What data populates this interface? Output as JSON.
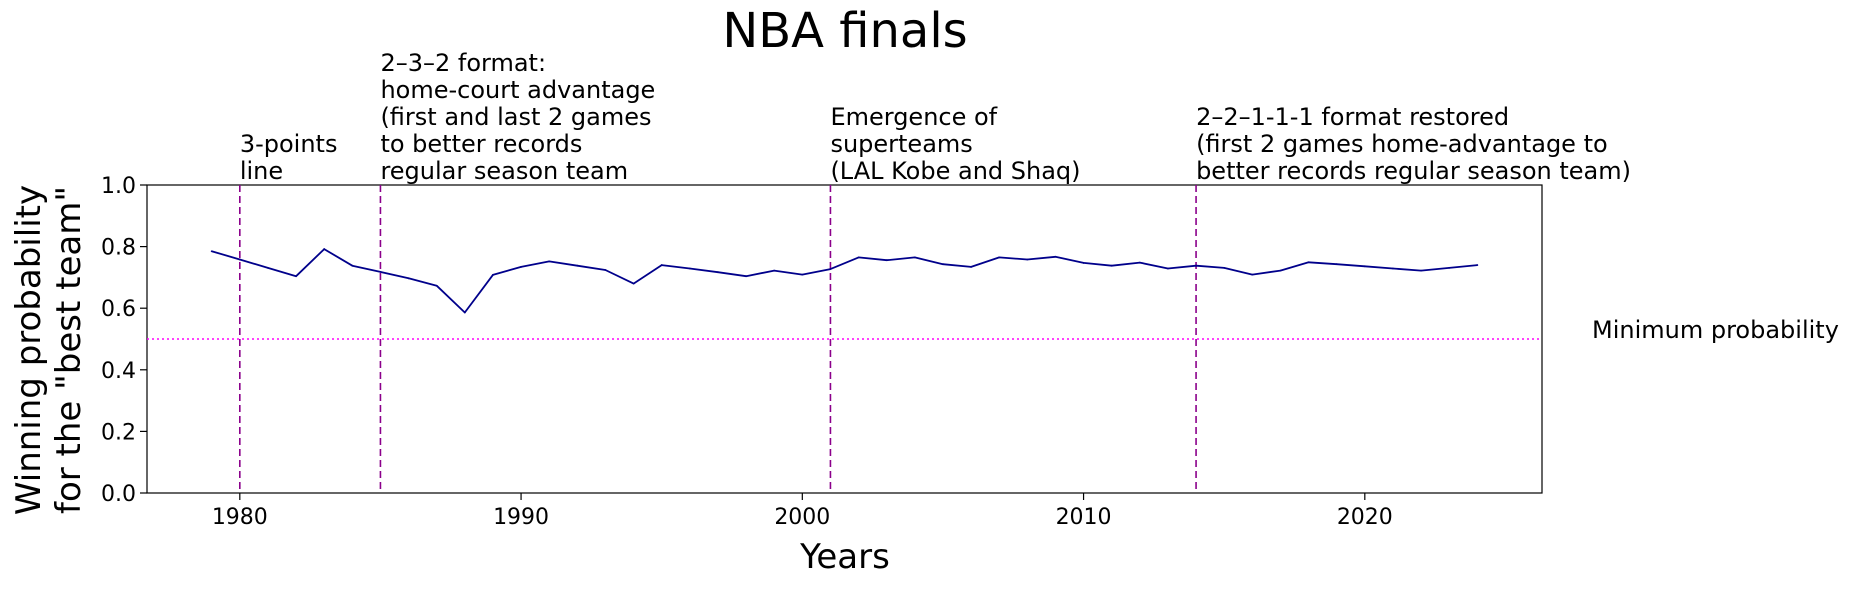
{
  "chart_data": {
    "type": "line",
    "title": "NBA finals",
    "xlabel": "Years",
    "ylabel": [
      "Winning probability",
      "for the \"best team\""
    ],
    "xlim": [
      1976.7,
      2026.3
    ],
    "ylim": [
      0.0,
      1.0
    ],
    "x_ticks": [
      1980,
      1990,
      2000,
      2010,
      2020
    ],
    "y_ticks": [
      0.0,
      0.2,
      0.4,
      0.6,
      0.8,
      1.0
    ],
    "grid": false,
    "series": [
      {
        "color": "#00008b",
        "x": [
          1979,
          1980,
          1981,
          1982,
          1983,
          1984,
          1985,
          1986,
          1987,
          1988,
          1989,
          1990,
          1991,
          1992,
          1993,
          1994,
          1995,
          1996,
          1997,
          1998,
          1999,
          2000,
          2001,
          2002,
          2003,
          2004,
          2005,
          2006,
          2007,
          2008,
          2009,
          2010,
          2011,
          2012,
          2013,
          2014,
          2015,
          2016,
          2017,
          2018,
          2019,
          2020,
          2021,
          2022,
          2023,
          2024
        ],
        "values": [
          0.785,
          0.758,
          0.731,
          0.704,
          0.792,
          0.738,
          0.718,
          0.697,
          0.673,
          0.586,
          0.708,
          0.734,
          0.752,
          0.738,
          0.724,
          0.68,
          0.74,
          0.729,
          0.717,
          0.704,
          0.722,
          0.709,
          0.727,
          0.765,
          0.756,
          0.765,
          0.743,
          0.734,
          0.765,
          0.758,
          0.767,
          0.747,
          0.738,
          0.748,
          0.729,
          0.738,
          0.731,
          0.709,
          0.722,
          0.749,
          0.743,
          0.736,
          0.729,
          0.722,
          0.731,
          0.74
        ]
      }
    ],
    "reference_lines": [
      {
        "orientation": "horizontal",
        "value": 0.5,
        "style": "dotted",
        "color": "#ff00ff",
        "label": "Minimum probability"
      }
    ],
    "events": [
      {
        "year": 1980,
        "label": [
          "3-points",
          "line"
        ]
      },
      {
        "year": 1985,
        "label": [
          "2–3–2 format:",
          "home-court advantage",
          "(first and last 2 games",
          "to better records",
          "regular season team"
        ]
      },
      {
        "year": 2001,
        "label": [
          "Emergence of",
          "superteams",
          "(LAL Kobe and Shaq)"
        ]
      },
      {
        "year": 2014,
        "label": [
          "2–2–1-1-1 format restored",
          "(first 2 games home-advantage to",
          "better records regular season team)"
        ]
      }
    ],
    "event_line_color": "#8b008b"
  }
}
